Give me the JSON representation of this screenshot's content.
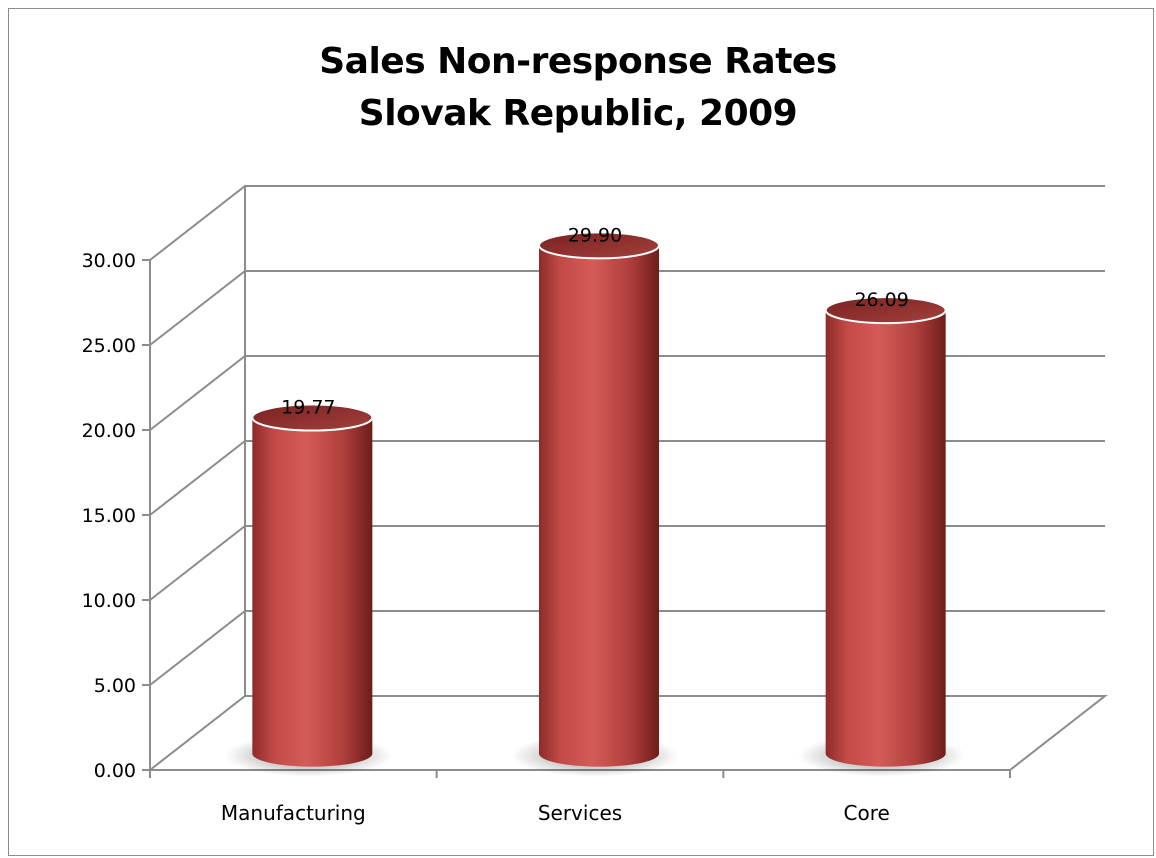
{
  "chart_data": {
    "type": "bar",
    "style": "3d-cylinder",
    "title": [
      "Sales Non-response Rates",
      "Slovak Republic, 2009"
    ],
    "categories": [
      "Manufacturing",
      "Services",
      "Core"
    ],
    "values": [
      19.77,
      29.9,
      26.09
    ],
    "data_labels": [
      "19.77",
      "29.90",
      "26.09"
    ],
    "ylim": [
      0,
      30
    ],
    "y_ticks": [
      "0.00",
      "5.00",
      "10.00",
      "15.00",
      "20.00",
      "25.00",
      "30.00"
    ],
    "grid": true,
    "legend": "none",
    "bar_color": "#c0504d"
  }
}
